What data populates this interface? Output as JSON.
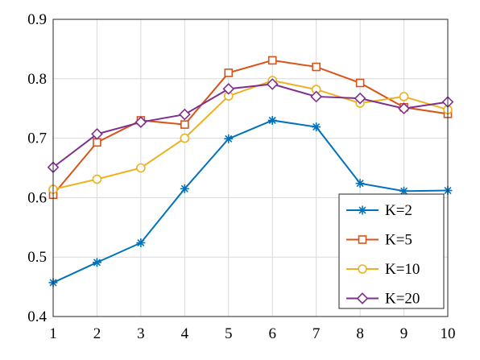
{
  "chart_data": {
    "type": "line",
    "title": "",
    "xlabel": "",
    "ylabel": "",
    "x": [
      1,
      2,
      3,
      4,
      5,
      6,
      7,
      8,
      9,
      10
    ],
    "xlim": [
      1,
      10
    ],
    "ylim": [
      0.4,
      0.9
    ],
    "xticks": [
      "1",
      "2",
      "3",
      "4",
      "5",
      "6",
      "7",
      "8",
      "9",
      "10"
    ],
    "yticks": [
      "0.4",
      "0.5",
      "0.6",
      "0.7",
      "0.8",
      "0.9"
    ],
    "grid": true,
    "legend_position": "bottom-right",
    "series": [
      {
        "name": "K=2",
        "color": "#0072BD",
        "marker": "asterisk",
        "values": [
          0.457,
          0.491,
          0.524,
          0.615,
          0.699,
          0.73,
          0.719,
          0.624,
          0.611,
          0.612
        ]
      },
      {
        "name": "K=5",
        "color": "#D95319",
        "marker": "square",
        "values": [
          0.605,
          0.693,
          0.73,
          0.723,
          0.81,
          0.831,
          0.82,
          0.793,
          0.752,
          0.741
        ]
      },
      {
        "name": "K=10",
        "color": "#EDB120",
        "marker": "circle",
        "values": [
          0.614,
          0.631,
          0.65,
          0.7,
          0.771,
          0.797,
          0.782,
          0.759,
          0.77,
          0.748
        ]
      },
      {
        "name": "K=20",
        "color": "#7E2F8E",
        "marker": "diamond",
        "values": [
          0.651,
          0.707,
          0.727,
          0.74,
          0.783,
          0.791,
          0.77,
          0.767,
          0.75,
          0.761
        ]
      }
    ]
  }
}
